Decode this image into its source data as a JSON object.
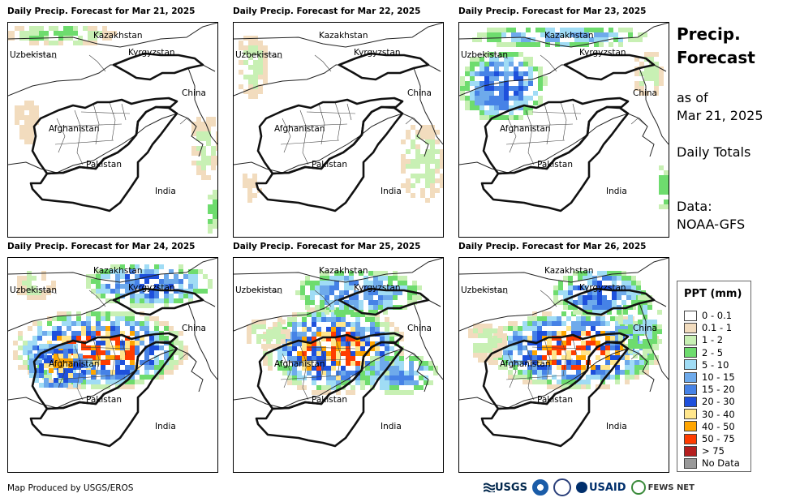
{
  "panels": [
    {
      "title": "Daily Precip. Forecast for Mar 21, 2025"
    },
    {
      "title": "Daily Precip. Forecast for Mar 22, 2025"
    },
    {
      "title": "Daily Precip. Forecast for Mar 23, 2025"
    },
    {
      "title": "Daily Precip. Forecast for Mar 24, 2025"
    },
    {
      "title": "Daily Precip. Forecast for Mar 25, 2025"
    },
    {
      "title": "Daily Precip. Forecast for Mar 26, 2025"
    }
  ],
  "map_labels": {
    "kazakhstan": "Kazakhstan",
    "uzbekistan": "Uzbekistan",
    "kyrgyzstan": "Kyrgyzstan",
    "china": "China",
    "afghanistan": "Afghanistan",
    "pakistan": "Pakistan",
    "india": "India"
  },
  "side": {
    "title_line1": "Precip.",
    "title_line2": "Forecast",
    "asof_line1": "as of",
    "asof_line2": "Mar 21, 2025",
    "totals": "Daily Totals",
    "data_line1": "Data:",
    "data_line2": "NOAA-GFS"
  },
  "legend": {
    "title": "PPT (mm)",
    "items": [
      {
        "label": "0 - 0.1",
        "color": "#ffffff"
      },
      {
        "label": "0.1 - 1",
        "color": "#f2dcbe"
      },
      {
        "label": "1 - 2",
        "color": "#c8f0b4"
      },
      {
        "label": "2 - 5",
        "color": "#6edc6e"
      },
      {
        "label": "5 - 10",
        "color": "#a0dcf5"
      },
      {
        "label": "10 - 15",
        "color": "#6eaaeb"
      },
      {
        "label": "15 - 20",
        "color": "#4682e6"
      },
      {
        "label": "20 - 30",
        "color": "#1e50dc"
      },
      {
        "label": "30 - 40",
        "color": "#ffe68c"
      },
      {
        "label": "40 - 50",
        "color": "#ffa500"
      },
      {
        "label": "50 - 75",
        "color": "#ff3c00"
      },
      {
        "label": "> 75",
        "color": "#b41e1e"
      },
      {
        "label": "No Data",
        "color": "#999999"
      }
    ]
  },
  "credit": "Map Produced by USGS/EROS",
  "logos": {
    "usgs": "USGS",
    "usaid": "USAID",
    "fewsnet": "FEWS NET"
  }
}
